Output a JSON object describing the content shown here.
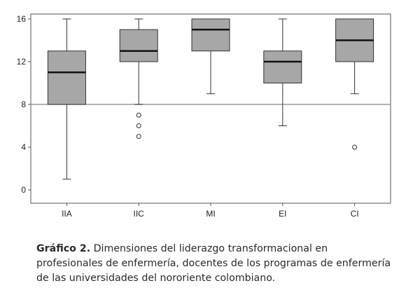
{
  "chart_data": {
    "type": "boxplot",
    "categories": [
      "IIA",
      "IIC",
      "MI",
      "EI",
      "CI"
    ],
    "yticks": [
      "0",
      "4",
      "8",
      "12",
      "16"
    ],
    "ylim": [
      -1,
      17
    ],
    "reference_line": 8,
    "boxes": [
      {
        "label": "IIA",
        "min": 1,
        "q1": 8,
        "median": 11,
        "q3": 13,
        "max": 16,
        "outliers": []
      },
      {
        "label": "IIC",
        "min": 8,
        "q1": 12,
        "median": 13,
        "q3": 15,
        "max": 16,
        "outliers": [
          5,
          6,
          7
        ]
      },
      {
        "label": "MI",
        "min": 9,
        "q1": 13,
        "median": 15,
        "q3": 16,
        "max": 16,
        "outliers": []
      },
      {
        "label": "EI",
        "min": 6,
        "q1": 10,
        "median": 12,
        "q3": 13,
        "max": 16,
        "outliers": []
      },
      {
        "label": "CI",
        "min": 9,
        "q1": 12,
        "median": 14,
        "q3": 16,
        "max": 16,
        "outliers": [
          4
        ]
      }
    ],
    "box_color": "#a7a7a7",
    "grid": false
  },
  "caption": {
    "label": "Gráfico 2.",
    "text": " Dimensiones del liderazgo transformacional en profesionales de enfermería, docentes de los programas de enfermería de las universidades del nororiente colombiano."
  }
}
